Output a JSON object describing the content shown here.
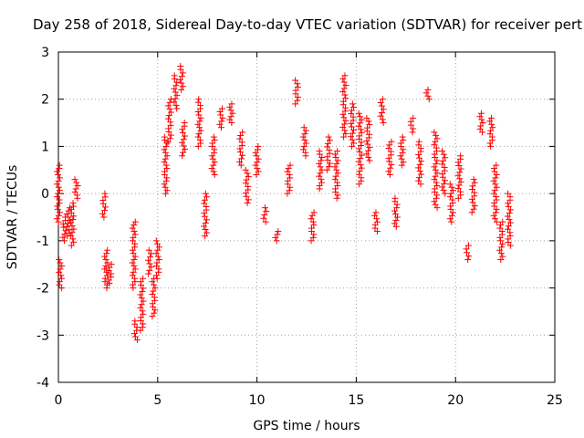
{
  "chart_data": {
    "type": "scatter",
    "title": "Day 258 of 2018, Sidereal Day-to-day VTEC variation (SDTVAR) for receiver pert",
    "xlabel": "GPS time / hours",
    "ylabel": "SDTVAR / TECUs",
    "xlim": [
      0,
      25
    ],
    "ylim": [
      -4,
      3
    ],
    "xticks": [
      "0",
      "5",
      "10",
      "15",
      "20",
      "25"
    ],
    "yticks": [
      "-4",
      "-3",
      "-2",
      "-1",
      "0",
      "1",
      "2",
      "3"
    ],
    "grid": true,
    "marker": "+",
    "color": "#ff0000",
    "series": [
      {
        "name": "SDTVAR",
        "tracks": [
          [
            0.0,
            0.6,
            0.0,
            -0.6
          ],
          [
            0.1,
            -1.4,
            0.1,
            -2.0
          ],
          [
            0.3,
            -0.5,
            0.3,
            -1.0
          ],
          [
            0.5,
            -0.3,
            0.5,
            -0.9
          ],
          [
            0.7,
            -0.2,
            0.7,
            -1.1
          ],
          [
            0.9,
            0.3,
            0.9,
            -0.1
          ],
          [
            2.3,
            0.0,
            2.3,
            -0.5
          ],
          [
            2.4,
            -1.2,
            2.4,
            -2.0
          ],
          [
            2.6,
            -1.5,
            2.6,
            -1.9
          ],
          [
            3.8,
            -0.6,
            3.8,
            -2.0
          ],
          [
            3.9,
            -2.7,
            3.9,
            -3.1
          ],
          [
            4.2,
            -1.8,
            4.2,
            -2.9
          ],
          [
            4.6,
            -1.2,
            4.6,
            -1.7
          ],
          [
            4.8,
            -1.8,
            4.8,
            -2.6
          ],
          [
            5.0,
            -1.0,
            5.0,
            -1.8
          ],
          [
            5.4,
            0.0,
            5.4,
            1.2
          ],
          [
            5.6,
            1.1,
            5.6,
            2.0
          ],
          [
            5.9,
            1.8,
            5.9,
            2.5
          ],
          [
            6.2,
            2.2,
            6.2,
            2.7
          ],
          [
            6.3,
            0.8,
            6.3,
            1.5
          ],
          [
            7.1,
            1.0,
            7.1,
            2.0
          ],
          [
            7.4,
            0.0,
            7.4,
            -0.9
          ],
          [
            7.8,
            0.4,
            7.8,
            1.2
          ],
          [
            8.2,
            1.4,
            8.2,
            1.8
          ],
          [
            8.7,
            1.5,
            8.7,
            1.9
          ],
          [
            9.2,
            0.6,
            9.2,
            1.3
          ],
          [
            9.5,
            -0.2,
            9.5,
            0.5
          ],
          [
            10.0,
            0.4,
            10.0,
            1.0
          ],
          [
            10.4,
            -0.3,
            10.4,
            -0.6
          ],
          [
            11.0,
            -0.8,
            11.0,
            -1.0
          ],
          [
            11.6,
            0.0,
            11.6,
            0.6
          ],
          [
            12.0,
            1.9,
            12.0,
            2.4
          ],
          [
            12.4,
            0.8,
            12.4,
            1.4
          ],
          [
            12.8,
            -0.4,
            12.8,
            -1.0
          ],
          [
            13.2,
            0.1,
            13.2,
            0.9
          ],
          [
            13.6,
            0.5,
            13.6,
            1.2
          ],
          [
            14.0,
            -0.1,
            14.0,
            0.9
          ],
          [
            14.4,
            1.2,
            14.4,
            2.5
          ],
          [
            14.8,
            1.0,
            14.8,
            1.9
          ],
          [
            15.2,
            0.2,
            15.2,
            1.7
          ],
          [
            15.6,
            0.7,
            15.6,
            1.6
          ],
          [
            16.0,
            -0.4,
            16.0,
            -0.8
          ],
          [
            16.3,
            1.5,
            16.3,
            2.0
          ],
          [
            16.7,
            0.4,
            16.7,
            1.1
          ],
          [
            17.0,
            -0.1,
            17.0,
            -0.7
          ],
          [
            17.3,
            0.6,
            17.3,
            1.2
          ],
          [
            17.8,
            1.3,
            17.8,
            1.6
          ],
          [
            18.2,
            0.2,
            18.2,
            1.1
          ],
          [
            18.6,
            2.0,
            18.6,
            2.2
          ],
          [
            19.0,
            -0.3,
            19.0,
            1.3
          ],
          [
            19.4,
            0.0,
            19.4,
            0.9
          ],
          [
            19.8,
            -0.6,
            19.8,
            0.2
          ],
          [
            20.2,
            -0.1,
            20.2,
            0.8
          ],
          [
            20.6,
            -1.1,
            20.6,
            -1.4
          ],
          [
            20.9,
            -0.4,
            20.9,
            0.3
          ],
          [
            21.3,
            1.3,
            21.3,
            1.7
          ],
          [
            21.8,
            1.0,
            21.8,
            1.6
          ],
          [
            22.0,
            -0.6,
            22.0,
            0.6
          ],
          [
            22.3,
            -0.6,
            22.3,
            -1.4
          ],
          [
            22.7,
            0.0,
            22.7,
            -1.1
          ]
        ]
      }
    ]
  }
}
